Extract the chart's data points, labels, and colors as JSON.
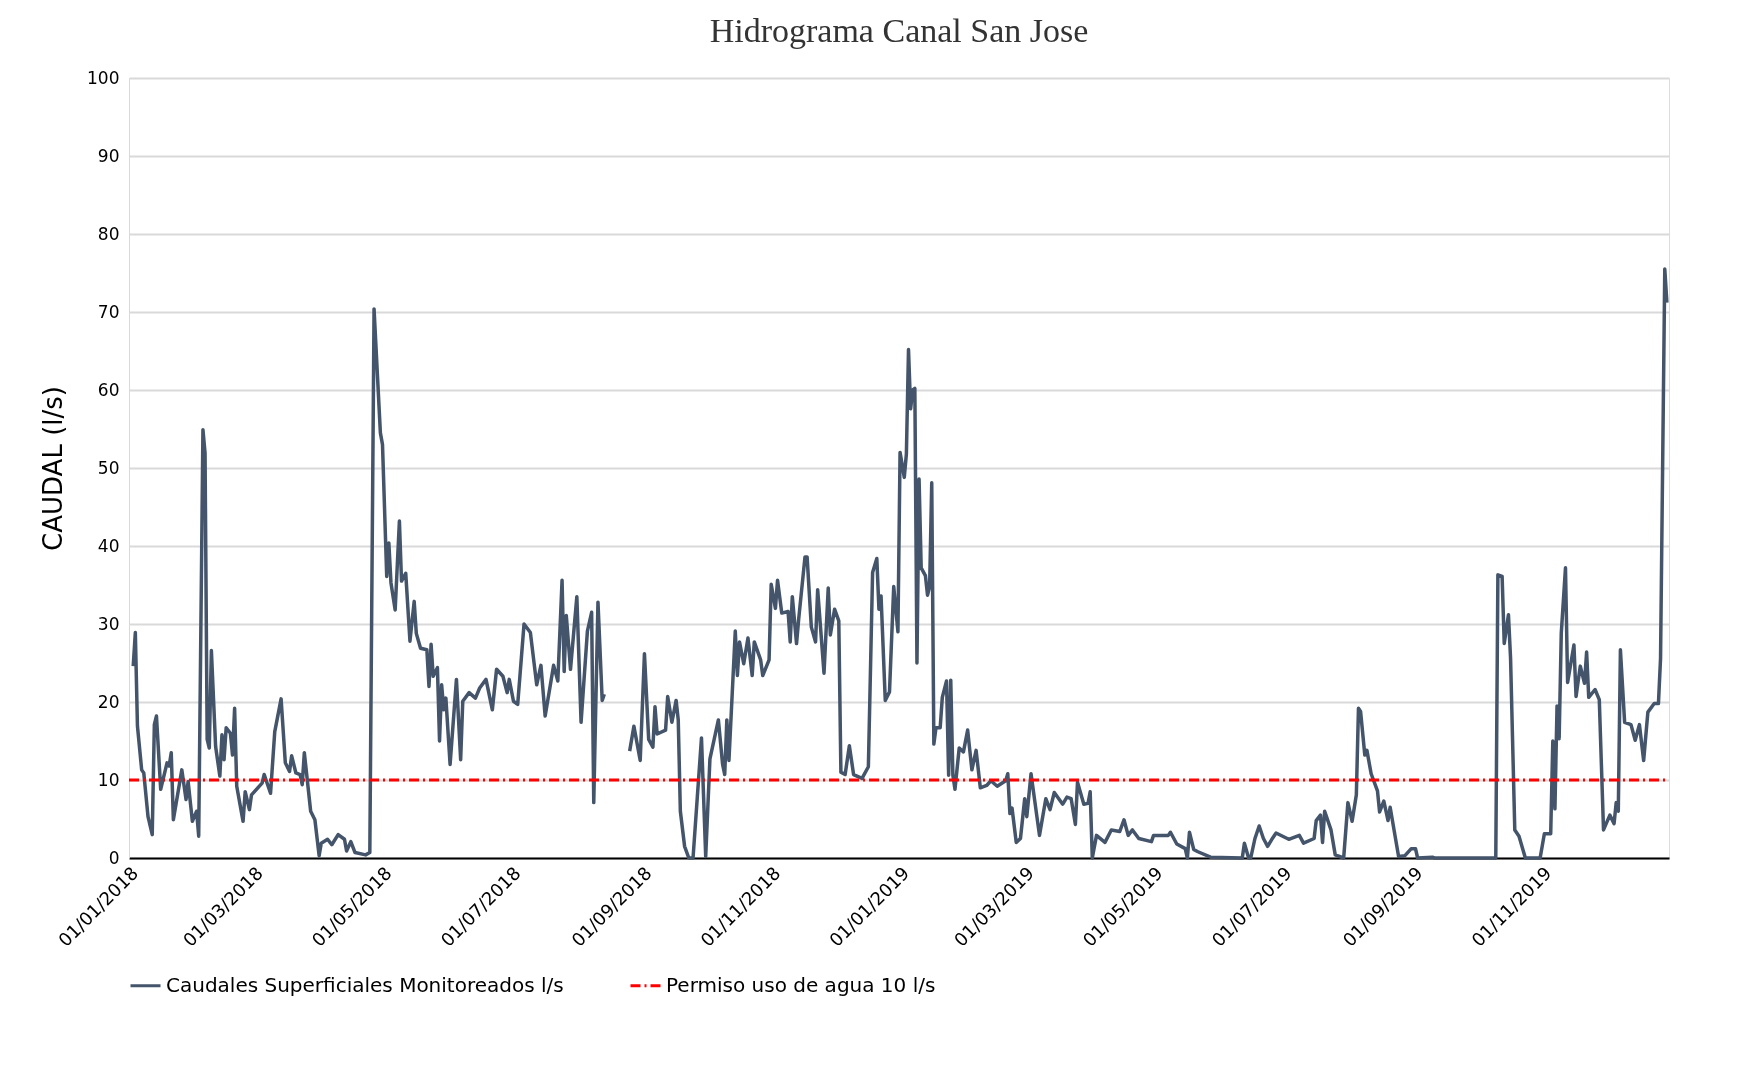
{
  "chart_data": {
    "type": "line",
    "title": "Hidrograma Canal San Jose",
    "ylabel": "CAUDAL (l/s)",
    "xlim": [
      "2018-01-01",
      "2019-12-31"
    ],
    "xticks": [
      {
        "value": "2018-01-01",
        "label": "01/01/2018"
      },
      {
        "value": "2018-03-01",
        "label": "01/03/2018"
      },
      {
        "value": "2018-05-01",
        "label": "01/05/2018"
      },
      {
        "value": "2018-07-01",
        "label": "01/07/2018"
      },
      {
        "value": "2018-09-01",
        "label": "01/09/2018"
      },
      {
        "value": "2018-11-01",
        "label": "01/11/2018"
      },
      {
        "value": "2019-01-01",
        "label": "01/01/2019"
      },
      {
        "value": "2019-03-01",
        "label": "01/03/2019"
      },
      {
        "value": "2019-05-01",
        "label": "01/05/2019"
      },
      {
        "value": "2019-07-01",
        "label": "01/07/2019"
      },
      {
        "value": "2019-09-01",
        "label": "01/09/2019"
      },
      {
        "value": "2019-11-01",
        "label": "01/11/2019"
      }
    ],
    "ylim": [
      0,
      100
    ],
    "yticks": [
      0,
      10,
      20,
      30,
      40,
      50,
      60,
      70,
      80,
      90,
      100
    ],
    "grid": "y",
    "legend": "bottom",
    "line_style": "solid",
    "series": [
      {
        "name": "Caudales Superficiales Monitoreados l/s",
        "color": "#44546a",
        "x": [
          "2018-01-03",
          "2018-01-04",
          "2018-01-05",
          "2018-01-07",
          "2018-01-08",
          "2018-01-10",
          "2018-01-12",
          "2018-01-13",
          "2018-01-14",
          "2018-01-16",
          "2018-01-19",
          "2018-01-20",
          "2018-01-21",
          "2018-01-22",
          "2018-01-26",
          "2018-01-28",
          "2018-01-29",
          "2018-01-31",
          "2018-02-02",
          "2018-02-03",
          "2018-02-05",
          "2018-02-06",
          "2018-02-07",
          "2018-02-08",
          "2018-02-09",
          "2018-02-11",
          "2018-02-13",
          "2018-02-14",
          "2018-02-15",
          "2018-02-16",
          "2018-02-18",
          "2018-02-19",
          "2018-02-20",
          "2018-02-21",
          "2018-02-24",
          "2018-02-25",
          "2018-02-27",
          "2018-02-28",
          "2018-03-05",
          "2018-03-06",
          "2018-03-09",
          "2018-03-11",
          "2018-03-14",
          "2018-03-16",
          "2018-03-18",
          "2018-03-19",
          "2018-03-21",
          "2018-03-23",
          "2018-03-24",
          "2018-03-25",
          "2018-03-28",
          "2018-03-30",
          "2018-04-01",
          "2018-04-02",
          "2018-04-05",
          "2018-04-07",
          "2018-04-10",
          "2018-04-13",
          "2018-04-14",
          "2018-04-16",
          "2018-04-18",
          "2018-04-23",
          "2018-04-25",
          "2018-04-27",
          "2018-04-30",
          "2018-05-01",
          "2018-05-03",
          "2018-05-04",
          "2018-05-05",
          "2018-05-07",
          "2018-05-09",
          "2018-05-10",
          "2018-05-12",
          "2018-05-14",
          "2018-05-16",
          "2018-05-17",
          "2018-05-19",
          "2018-05-22",
          "2018-05-23",
          "2018-05-24",
          "2018-05-25",
          "2018-05-27",
          "2018-05-28",
          "2018-05-29",
          "2018-05-30",
          "2018-05-31",
          "2018-06-02",
          "2018-06-05",
          "2018-06-07",
          "2018-06-08",
          "2018-06-11",
          "2018-06-14",
          "2018-06-16",
          "2018-06-19",
          "2018-06-22",
          "2018-06-24",
          "2018-06-27",
          "2018-06-29",
          "2018-06-30",
          "2018-07-02",
          "2018-07-04",
          "2018-07-07",
          "2018-07-10",
          "2018-07-13",
          "2018-07-15",
          "2018-07-17",
          "2018-07-21",
          "2018-07-23",
          "2018-07-25",
          "2018-07-26",
          "2018-07-27",
          "2018-07-29",
          "2018-08-01",
          "2018-08-03",
          "2018-08-06",
          "2018-08-08",
          "2018-08-09",
          "2018-08-11",
          "2018-08-13",
          "2018-08-14",
          "2018-08-19",
          "2018-08-26",
          "2018-08-28",
          "2018-08-31",
          "2018-09-02",
          "2018-09-04",
          "2018-09-06",
          "2018-09-07",
          "2018-09-08",
          "2018-09-12",
          "2018-09-13",
          "2018-09-15",
          "2018-09-17",
          "2018-09-18",
          "2018-09-19",
          "2018-09-21",
          "2018-09-23",
          "2018-09-25",
          "2018-09-27",
          "2018-09-29",
          "2018-10-01",
          "2018-10-03",
          "2018-10-07",
          "2018-10-09",
          "2018-10-10",
          "2018-10-11",
          "2018-10-12",
          "2018-10-15",
          "2018-10-16",
          "2018-10-17",
          "2018-10-19",
          "2018-10-21",
          "2018-10-23",
          "2018-10-24",
          "2018-10-27",
          "2018-10-28",
          "2018-10-31",
          "2018-11-01",
          "2018-11-03",
          "2018-11-04",
          "2018-11-06",
          "2018-11-09",
          "2018-11-10",
          "2018-11-11",
          "2018-11-13",
          "2018-11-14",
          "2018-11-17",
          "2018-11-18",
          "2018-11-20",
          "2018-11-22",
          "2018-11-23",
          "2018-11-26",
          "2018-11-28",
          "2018-11-29",
          "2018-12-01",
          "2018-12-03",
          "2018-12-04",
          "2018-12-06",
          "2018-12-08",
          "2018-12-10",
          "2018-12-14",
          "2018-12-17",
          "2018-12-19",
          "2018-12-21",
          "2018-12-22",
          "2018-12-23",
          "2018-12-25",
          "2018-12-27",
          "2018-12-29",
          "2018-12-31",
          "2019-01-01",
          "2019-01-03",
          "2019-01-04",
          "2019-01-05",
          "2019-01-06",
          "2019-01-07",
          "2019-01-08",
          "2019-01-09",
          "2019-01-10",
          "2019-01-11",
          "2019-01-13",
          "2019-01-14",
          "2019-01-15",
          "2019-01-16",
          "2019-01-17",
          "2019-01-18",
          "2019-01-20",
          "2019-01-21",
          "2019-01-23",
          "2019-01-24",
          "2019-01-25",
          "2019-01-26",
          "2019-01-27",
          "2019-01-29",
          "2019-01-31",
          "2019-02-02",
          "2019-02-04",
          "2019-02-06",
          "2019-02-08",
          "2019-02-11",
          "2019-02-13",
          "2019-02-16",
          "2019-02-20",
          "2019-02-21",
          "2019-02-22",
          "2019-02-23",
          "2019-02-25",
          "2019-02-27",
          "2019-03-01",
          "2019-03-02",
          "2019-03-04",
          "2019-03-08",
          "2019-03-11",
          "2019-03-13",
          "2019-03-15",
          "2019-03-19",
          "2019-03-21",
          "2019-03-23",
          "2019-03-25",
          "2019-03-26",
          "2019-03-29",
          "2019-03-31",
          "2019-04-01",
          "2019-04-02",
          "2019-04-04",
          "2019-04-08",
          "2019-04-11",
          "2019-04-15",
          "2019-04-17",
          "2019-04-19",
          "2019-04-21",
          "2019-04-24",
          "2019-04-30",
          "2019-05-01",
          "2019-05-08",
          "2019-05-09",
          "2019-05-12",
          "2019-05-16",
          "2019-05-17",
          "2019-05-18",
          "2019-05-20",
          "2019-05-22",
          "2019-05-28",
          "2019-06-12",
          "2019-06-13",
          "2019-06-15",
          "2019-06-16",
          "2019-06-18",
          "2019-06-20",
          "2019-06-22",
          "2019-06-24",
          "2019-06-26",
          "2019-06-28",
          "2019-07-04",
          "2019-07-09",
          "2019-07-11",
          "2019-07-16",
          "2019-07-17",
          "2019-07-19",
          "2019-07-20",
          "2019-07-21",
          "2019-07-24",
          "2019-07-26",
          "2019-07-30",
          "2019-08-01",
          "2019-08-03",
          "2019-08-05",
          "2019-08-06",
          "2019-08-07",
          "2019-08-09",
          "2019-08-10",
          "2019-08-12",
          "2019-08-15",
          "2019-08-16",
          "2019-08-18",
          "2019-08-20",
          "2019-08-21",
          "2019-08-25",
          "2019-08-28",
          "2019-08-31",
          "2019-09-02",
          "2019-09-03",
          "2019-09-10",
          "2019-09-11",
          "2019-10-10",
          "2019-10-11",
          "2019-10-13",
          "2019-10-14",
          "2019-10-16",
          "2019-10-17",
          "2019-10-19",
          "2019-10-21",
          "2019-10-24",
          "2019-10-31",
          "2019-11-02",
          "2019-11-05",
          "2019-11-06",
          "2019-11-07",
          "2019-11-08",
          "2019-11-09",
          "2019-11-10",
          "2019-11-12",
          "2019-11-13",
          "2019-11-16",
          "2019-11-17",
          "2019-11-19",
          "2019-11-21",
          "2019-11-22",
          "2019-11-23",
          "2019-11-26",
          "2019-11-28",
          "2019-11-30",
          "2019-12-03",
          "2019-12-05",
          "2019-12-06",
          "2019-12-07",
          "2019-12-08",
          "2019-12-10",
          "2019-12-13",
          "2019-12-15",
          "2019-12-17",
          "2019-12-19",
          "2019-12-21",
          "2019-12-24",
          "2019-12-26",
          "2019-12-27",
          "2019-12-29",
          "2019-12-30"
        ],
        "values": [
          24.6,
          28.9,
          16.9,
          11.3,
          10.9,
          5.3,
          3.0,
          17.1,
          18.2,
          8.8,
          12.2,
          11.8,
          13.5,
          4.9,
          11.3,
          7.5,
          9.8,
          4.7,
          6,
          2.8,
          54.9,
          51.9,
          15.2,
          14.1,
          26.6,
          14.3,
          10.5,
          15.8,
          12.6,
          16.7,
          16,
          13.2,
          19.2,
          9.2,
          4.7,
          8.5,
          6.2,
          8.1,
          9.6,
          10.7,
          8.3,
          16.2,
          20.4,
          12.2,
          11.1,
          13.1,
          10.9,
          10.7,
          9.4,
          13.5,
          6,
          4.9,
          0.3,
          1.9,
          2.4,
          1.7,
          3,
          2.4,
          0.9,
          2.1,
          0.7,
          0.4,
          0.7,
          70.4,
          54.5,
          53,
          36.1,
          40.4,
          35.3,
          31.8,
          43.2,
          35.5,
          36.5,
          27.8,
          32.9,
          28.8,
          26.9,
          26.7,
          22,
          27.4,
          23.3,
          24.4,
          15,
          22.2,
          19,
          20.5,
          12,
          22.9,
          12.6,
          20.1,
          21.2,
          20.5,
          21.8,
          22.9,
          19,
          24.2,
          23.3,
          21.2,
          22.9,
          20.1,
          19.7,
          30,
          28.9,
          22.2,
          24.7,
          18.2,
          24.7,
          22.7,
          35.6,
          23.9,
          31.1,
          24.2,
          33.5,
          17.4,
          29.1,
          31.5,
          7.1,
          32.8,
          20.2,
          21,
          null,
          13.7,
          16.9,
          12.5,
          26.2,
          15.2,
          14.2,
          19.4,
          15.9,
          16.4,
          20.7,
          17.4,
          20.2,
          17.7,
          6,
          1.5,
          0,
          0,
          7.7,
          15.4,
          0.2,
          12.7,
          17.7,
          12,
          10.7,
          17.7,
          12.5,
          29.1,
          23.4,
          27.7,
          24.9,
          28.2,
          23.4,
          27.7,
          25.4,
          23.4,
          25.4,
          35.1,
          32,
          35.6,
          31.4,
          31.6,
          27.7,
          33.5,
          27.5,
          30.6,
          38.6,
          38.6,
          29.6,
          27.7,
          34.4,
          23.7,
          34.6,
          28.6,
          31.9,
          30.4,
          11,
          10.7,
          14.4,
          10.7,
          10.2,
          11.7,
          36.6,
          38.4,
          31.9,
          33.6,
          20.2,
          21.3,
          34.8,
          29,
          52,
          48.8,
          51.8,
          65.2,
          57.6,
          60,
          60.2,
          25,
          48.6,
          37.2,
          36.2,
          33.7,
          34.8,
          48.1,
          14.6,
          16.7,
          16.7,
          20.6,
          22.7,
          10.6,
          22.8,
          10.6,
          8.8,
          14.1,
          13.6,
          16.4,
          11.3,
          13.8,
          9,
          9.3,
          9.9,
          9.2,
          9.9,
          10.8,
          5.7,
          6.4,
          2,
          2.5,
          7.6,
          5.3,
          10.8,
          2.9,
          7.6,
          6.2,
          8.4,
          6.9,
          7.8,
          7.6,
          4.3,
          9.7,
          6.9,
          7,
          8.5,
          0,
          2.9,
          2,
          3.6,
          3.4,
          4.9,
          2.9,
          3.6,
          2.5,
          2.1,
          2.9,
          2.9,
          3.3,
          1.8,
          1.2,
          0,
          3.3,
          1.1,
          0.8,
          0.1,
          0,
          1.9,
          0,
          0,
          2.5,
          4.1,
          2.5,
          1.5,
          2.4,
          3.2,
          2.4,
          2.9,
          1.9,
          2.5,
          4.8,
          5.5,
          2,
          6,
          3.6,
          0.4,
          0,
          7.1,
          4.7,
          8.1,
          19.2,
          18.8,
          13.2,
          13.8,
          10.8,
          8.6,
          5.9,
          7.3,
          4.8,
          6.5,
          0.2,
          0.3,
          1.2,
          1.2,
          0,
          0.1,
          0,
          0,
          36.3,
          36.1,
          27.5,
          31.2,
          25.6,
          3.6,
          2.8,
          0,
          0,
          3.1,
          3.1,
          15,
          6.3,
          19.5,
          15.3,
          28.8,
          37.2,
          22.5,
          27.3,
          20.7,
          24.6,
          22.4,
          26.4,
          20.6,
          21.6,
          20.3,
          3.6,
          5.5,
          4.4,
          7.1,
          6,
          26.7,
          17.4,
          17.1,
          15.1,
          17.1,
          12.5,
          18.7,
          19.8,
          19.8,
          25.6,
          75.5,
          71.2
        ]
      }
    ],
    "ref_lines": [
      {
        "axis": "y",
        "value": 10,
        "label": "Permiso uso de agua 10 l/s",
        "color": "#ff0000",
        "line_style": "dashdot"
      }
    ]
  }
}
